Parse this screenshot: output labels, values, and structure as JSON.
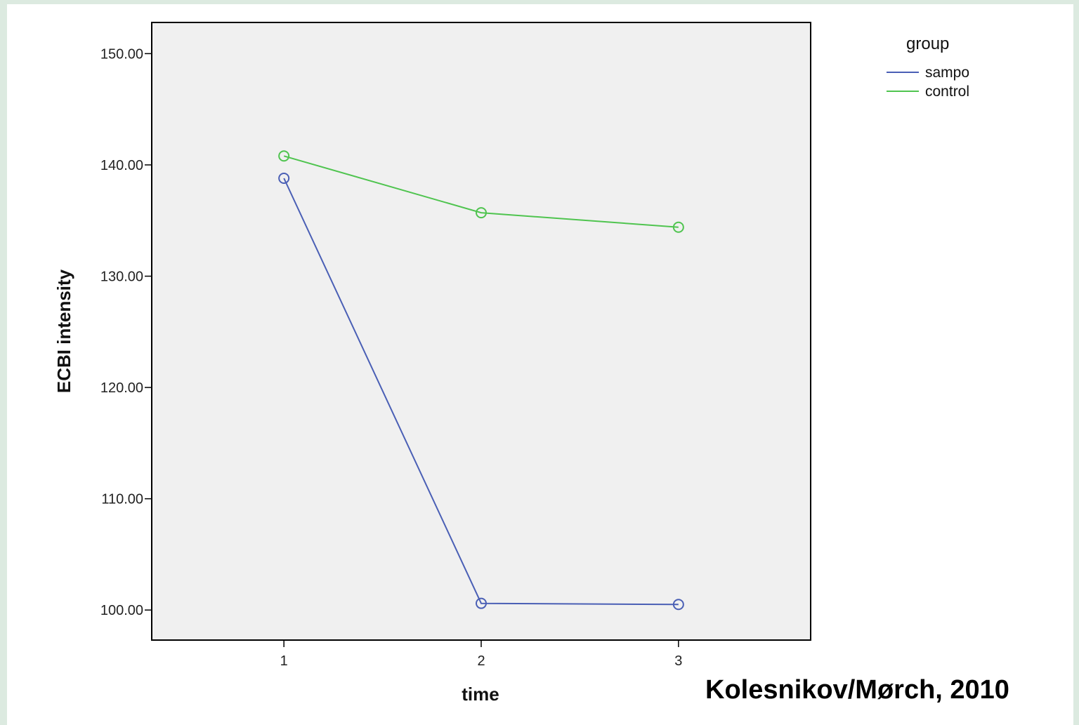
{
  "citation": "Kolesnikov/Mørch, 2010",
  "chart_data": {
    "type": "line",
    "title": "",
    "xlabel": "time",
    "ylabel": "ECBI intensity",
    "x": [
      1,
      2,
      3
    ],
    "x_ticks": [
      "1",
      "2",
      "3"
    ],
    "xlim": [
      0.33,
      3.67
    ],
    "ylim": [
      97.3,
      152.8
    ],
    "y_ticks": [
      "100.00",
      "110.00",
      "120.00",
      "130.00",
      "140.00",
      "150.00"
    ],
    "y_tick_values": [
      100,
      110,
      120,
      130,
      140,
      150
    ],
    "grid": false,
    "marker": "open-circle",
    "plot_background": "#f0f0f0",
    "legend": {
      "title": "group",
      "placement": "top-right, outside plot"
    },
    "series": [
      {
        "name": "sampo",
        "color": "#4a5fb5",
        "values": [
          138.8,
          100.6,
          100.5
        ]
      },
      {
        "name": "control",
        "color": "#4fc44f",
        "values": [
          140.8,
          135.7,
          134.4
        ]
      }
    ]
  }
}
